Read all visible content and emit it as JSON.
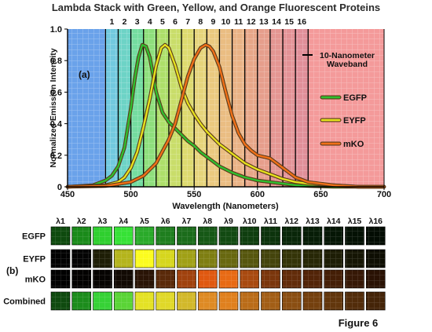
{
  "title": "Lambda Stack with Green, Yellow, and Orange Fluorescent Proteins",
  "figure_label": "Figure 6",
  "chart_data": [
    {
      "type": "line",
      "panel_label": "(a)",
      "xlabel": "Wavelength (Nanometers)",
      "ylabel": "Normalized Emission Intensity",
      "xlim": [
        450,
        700
      ],
      "ylim": [
        0,
        1.0
      ],
      "x_ticks": [
        450,
        500,
        550,
        600,
        650,
        700
      ],
      "y_ticks": [
        0,
        0.2,
        0.4,
        0.6,
        0.8,
        1.0
      ],
      "y_tick_labels": [
        "0",
        "0.2",
        "0.4",
        "0.6",
        "0.8",
        "1.0"
      ],
      "grid": false,
      "legend_position": "right",
      "band_annotation": "10-Nanometer Waveband",
      "bands": {
        "labels": [
          "1",
          "2",
          "3",
          "4",
          "5",
          "6",
          "7",
          "8",
          "9",
          "10",
          "11",
          "12",
          "13",
          "14",
          "15",
          "16"
        ],
        "start_nm": 480,
        "width_nm": 10,
        "colors": [
          "#3cb4d2",
          "#34c2b0",
          "#3fce7c",
          "#62d24a",
          "#8ed230",
          "#b4d030",
          "#d0cc38",
          "#dcc448",
          "#e2b44e",
          "#e2a452",
          "#e09456",
          "#de845a",
          "#dc7860",
          "#da6e68",
          "#d8686e",
          "#d46472"
        ]
      },
      "regions": {
        "left_color": "#6aa2ea",
        "right_color": "#f49a9a"
      },
      "series": [
        {
          "name": "EGFP",
          "color": "#2fbf2f",
          "x": [
            450,
            470,
            480,
            485,
            490,
            495,
            500,
            503,
            506,
            509,
            512,
            515,
            520,
            525,
            530,
            535,
            540,
            545,
            550,
            555,
            560,
            565,
            570,
            575,
            580,
            590,
            600,
            610,
            620,
            630,
            640,
            660,
            680,
            700
          ],
          "y": [
            0,
            0.01,
            0.04,
            0.07,
            0.13,
            0.25,
            0.5,
            0.68,
            0.82,
            0.9,
            0.89,
            0.82,
            0.6,
            0.47,
            0.41,
            0.37,
            0.33,
            0.29,
            0.26,
            0.22,
            0.19,
            0.16,
            0.13,
            0.11,
            0.09,
            0.06,
            0.04,
            0.03,
            0.02,
            0.01,
            0.005,
            0,
            0,
            0
          ]
        },
        {
          "name": "EYFP",
          "color": "#e6e21e",
          "x": [
            450,
            480,
            490,
            495,
            500,
            505,
            510,
            515,
            520,
            524,
            527,
            530,
            535,
            540,
            545,
            550,
            555,
            560,
            565,
            570,
            575,
            580,
            590,
            600,
            610,
            620,
            630,
            640,
            660,
            680,
            700
          ],
          "y": [
            0,
            0.01,
            0.03,
            0.06,
            0.12,
            0.22,
            0.38,
            0.56,
            0.77,
            0.88,
            0.9,
            0.88,
            0.77,
            0.63,
            0.53,
            0.46,
            0.4,
            0.35,
            0.31,
            0.27,
            0.24,
            0.21,
            0.15,
            0.11,
            0.08,
            0.05,
            0.03,
            0.02,
            0.01,
            0,
            0
          ]
        },
        {
          "name": "mKO",
          "color": "#f07018",
          "x": [
            450,
            480,
            500,
            510,
            520,
            530,
            535,
            540,
            545,
            550,
            555,
            559,
            562,
            565,
            570,
            575,
            580,
            585,
            590,
            595,
            600,
            605,
            610,
            615,
            620,
            630,
            640,
            650,
            660,
            670,
            680,
            690,
            700
          ],
          "y": [
            0,
            0.005,
            0.03,
            0.07,
            0.15,
            0.3,
            0.4,
            0.55,
            0.7,
            0.81,
            0.88,
            0.9,
            0.89,
            0.86,
            0.76,
            0.6,
            0.45,
            0.34,
            0.27,
            0.23,
            0.2,
            0.19,
            0.18,
            0.15,
            0.12,
            0.06,
            0.03,
            0.02,
            0.01,
            0.005,
            0,
            0,
            0
          ]
        }
      ]
    },
    {
      "type": "heatmap",
      "panel_label": "(b)",
      "columns": [
        "λ1",
        "λ2",
        "λ3",
        "λ4",
        "λ5",
        "λ6",
        "λ7",
        "λ8",
        "λ9",
        "λ10",
        "λ11",
        "λ12",
        "λ13",
        "λ14",
        "λ15",
        "λ16"
      ],
      "rows": [
        {
          "label": "EGFP",
          "colors": [
            "#0e4a0e",
            "#1a8a1a",
            "#2fcf2f",
            "#36e236",
            "#2aaa2a",
            "#1f7e1f",
            "#1b6c1b",
            "#165816",
            "#124a12",
            "#0f3e0f",
            "#0c330c",
            "#092609",
            "#071d07",
            "#051605",
            "#041104",
            "#030c03"
          ]
        },
        {
          "label": "EYFP",
          "colors": [
            "#020202",
            "#040404",
            "#1e1e06",
            "#b4b41c",
            "#fcfc1e",
            "#d6d61e",
            "#a0a016",
            "#7e7e12",
            "#686810",
            "#56560e",
            "#44440c",
            "#343408",
            "#272706",
            "#1d1d05",
            "#151504",
            "#0e0e03"
          ]
        },
        {
          "label": "mKO",
          "colors": [
            "#010101",
            "#030201",
            "#060402",
            "#120a04",
            "#2a1406",
            "#5a2a0a",
            "#a0420e",
            "#e05810",
            "#e86a14",
            "#a84a10",
            "#7a360c",
            "#622c0a",
            "#522408",
            "#441e06",
            "#361806",
            "#2a1204"
          ]
        },
        {
          "label": "Combined",
          "colors": [
            "#0f4a0f",
            "#1c8c1c",
            "#36d236",
            "#5ad436",
            "#e4e224",
            "#e0d828",
            "#d2b82a",
            "#de8a24",
            "#e0801e",
            "#ba6c18",
            "#a25e16",
            "#8a4e12",
            "#74400e",
            "#62360c",
            "#522c0a",
            "#442408"
          ]
        }
      ]
    }
  ]
}
